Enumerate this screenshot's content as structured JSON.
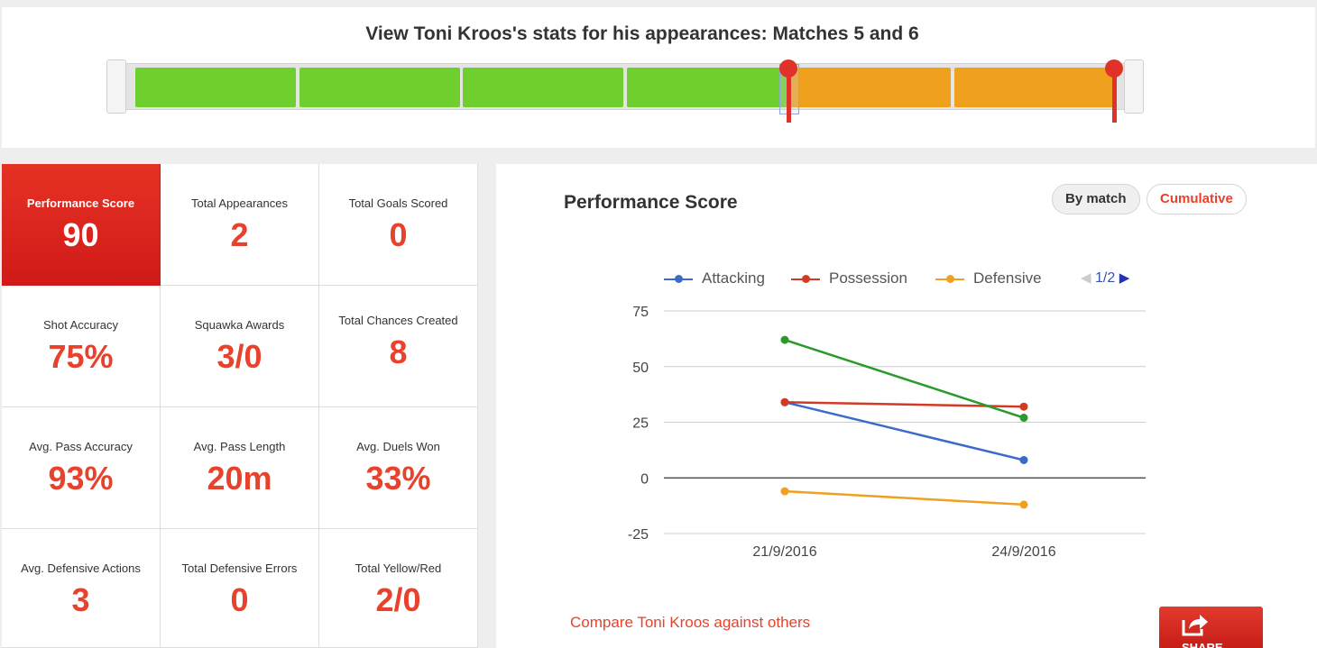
{
  "header": {
    "title": "View Toni Kroos's stats for his appearances: Matches 5 and 6"
  },
  "slider": {
    "total_matches": 6,
    "selected_from": 5,
    "selected_to": 6,
    "color_unselected": "#6ecf2f",
    "color_selected": "#efa11e",
    "handle_color": "#e03228"
  },
  "stats": [
    {
      "label": "Performance Score",
      "value": "90",
      "highlight": true
    },
    {
      "label": "Total Appearances",
      "value": "2"
    },
    {
      "label": "Total Goals Scored",
      "value": "0"
    },
    {
      "label": "Shot Accuracy",
      "value": "75%"
    },
    {
      "label": "Squawka Awards",
      "value": "3/0"
    },
    {
      "label": "Total Chances Created",
      "value": "8"
    },
    {
      "label": "Avg. Pass Accuracy",
      "value": "93%"
    },
    {
      "label": "Avg. Pass Length",
      "value": "20m"
    },
    {
      "label": "Avg. Duels Won",
      "value": "33%"
    },
    {
      "label": "Avg. Defensive Actions",
      "value": "3"
    },
    {
      "label": "Total Defensive Errors",
      "value": "0"
    },
    {
      "label": "Total Yellow/Red",
      "value": "2/0"
    }
  ],
  "chart_panel": {
    "title": "Performance Score",
    "by_match_label": "By match",
    "cumulative_label": "Cumulative",
    "pager_text": "1/2",
    "prev_icon": "triangle-left-icon",
    "next_icon": "triangle-right-icon",
    "compare_link": "Compare Toni Kroos against others",
    "share_label": "SHARE",
    "share_icon": "share-icon"
  },
  "chart_data": {
    "type": "line",
    "x": [
      "21/9/2016",
      "24/9/2016"
    ],
    "ylim": [
      -25,
      75
    ],
    "yticks": [
      75,
      50,
      25,
      0,
      -25
    ],
    "grid": true,
    "legend_position": "top",
    "series": [
      {
        "name": "Attacking",
        "color": "#3a6bc8",
        "values": [
          34,
          8
        ]
      },
      {
        "name": "Possession",
        "color": "#d33a22",
        "values": [
          34,
          32
        ]
      },
      {
        "name": "Defensive",
        "color": "#f0a020",
        "values": [
          -6,
          -12
        ]
      },
      {
        "color": "#2a9a2a",
        "values": [
          62,
          27
        ]
      }
    ]
  }
}
